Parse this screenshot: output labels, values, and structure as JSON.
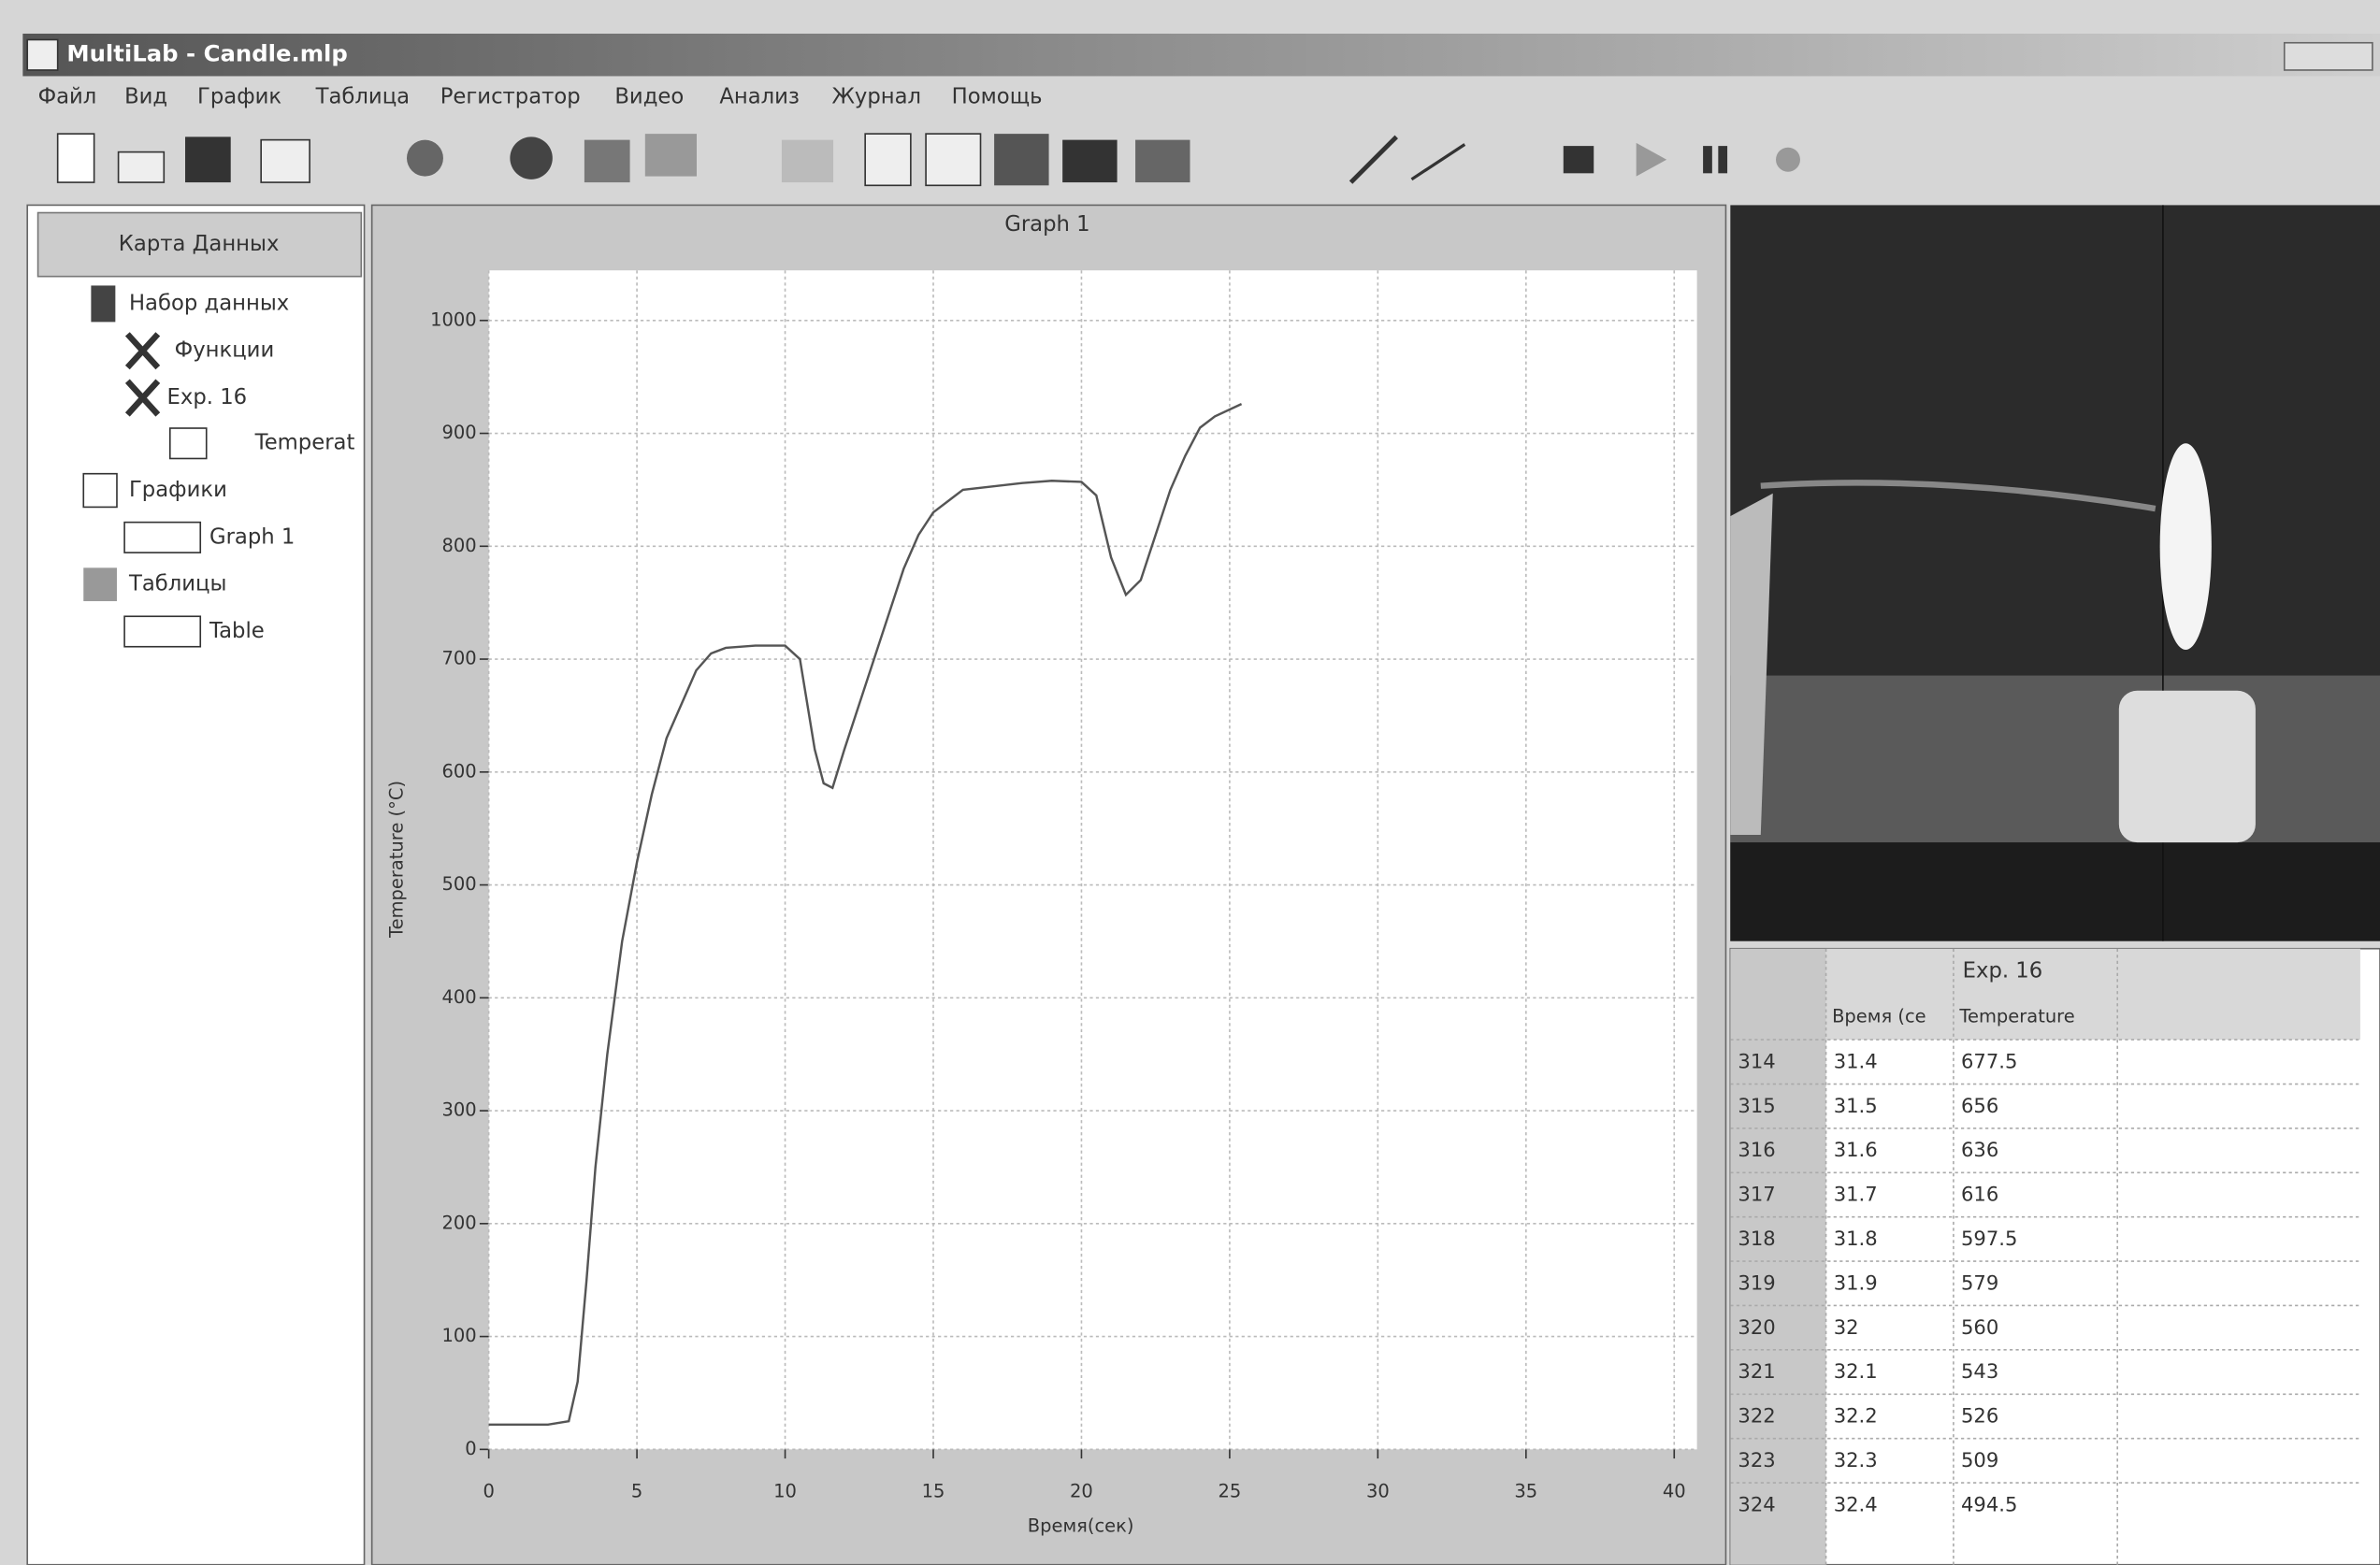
{
  "window": {
    "title": "MultiLab - Candle.mlp"
  },
  "menu": [
    "Файл",
    "Вид",
    "График",
    "Таблица",
    "Регистратор",
    "Видео",
    "Анализ",
    "Журнал",
    "Помощь"
  ],
  "data_map": {
    "header": "Карта Данных",
    "tree": [
      {
        "label": "Набор данных"
      },
      {
        "label": "Функции"
      },
      {
        "label": "Exp. 16"
      },
      {
        "label": "Temperat"
      },
      {
        "label": "Графики"
      },
      {
        "label": "Graph 1"
      },
      {
        "label": "Таблицы"
      },
      {
        "label": "Table"
      }
    ]
  },
  "chart_data": {
    "type": "line",
    "title": "Graph 1",
    "x_label": "Время(сек)",
    "y_label": "Temperature (°C)",
    "x": [
      0,
      1,
      2,
      2.7,
      3,
      3.3,
      3.6,
      4,
      4.5,
      5,
      5.5,
      6,
      6.5,
      7,
      7.5,
      8,
      9,
      10,
      10.5,
      11,
      11.3,
      11.6,
      12,
      12.5,
      13,
      13.5,
      14,
      14.5,
      15,
      16,
      17,
      18,
      19,
      20,
      20.5,
      21,
      21.5,
      22,
      22.5,
      23,
      23.5,
      24,
      24.5,
      25.4
    ],
    "values": [
      22,
      22,
      22,
      25,
      60,
      150,
      250,
      350,
      450,
      520,
      580,
      630,
      660,
      690,
      705,
      710,
      712,
      712,
      700,
      620,
      590,
      586,
      620,
      660,
      700,
      740,
      780,
      810,
      830,
      850,
      853,
      856,
      858,
      857,
      845,
      790,
      757,
      770,
      810,
      850,
      880,
      905,
      915,
      926
    ],
    "color": "#555555",
    "xlim": [
      0,
      40
    ],
    "ylim": [
      0,
      1000
    ],
    "xticks": [
      0,
      5,
      10,
      15,
      20,
      25,
      30,
      35,
      40
    ],
    "yticks": [
      0,
      100,
      200,
      300,
      400,
      500,
      600,
      700,
      800,
      900,
      1000
    ],
    "grid": true
  },
  "table": {
    "group": "Exp. 16",
    "columns": [
      "Время (се",
      "Temperature"
    ],
    "rows": [
      [
        314,
        31.4,
        677.5
      ],
      [
        315,
        31.5,
        656
      ],
      [
        316,
        31.6,
        636
      ],
      [
        317,
        31.7,
        616
      ],
      [
        318,
        31.8,
        597.5
      ],
      [
        319,
        31.9,
        579
      ],
      [
        320,
        32,
        560
      ],
      [
        321,
        32.1,
        543
      ],
      [
        322,
        32.2,
        526
      ],
      [
        323,
        32.3,
        509
      ],
      [
        324,
        32.4,
        494.5
      ]
    ]
  }
}
